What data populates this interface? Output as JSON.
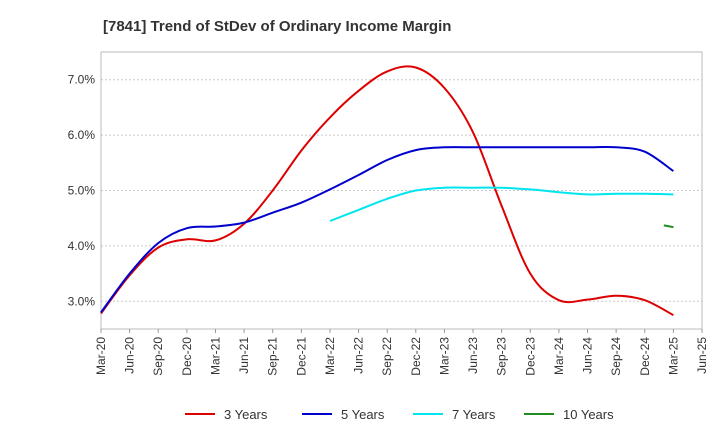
{
  "chart_data": {
    "type": "line",
    "title": "[7841]  Trend of StDev of Ordinary Income Margin",
    "xlabel": "",
    "ylabel": "",
    "x_tick_labels": [
      "Mar-20",
      "Jun-20",
      "Sep-20",
      "Dec-20",
      "Mar-21",
      "Jun-21",
      "Sep-21",
      "Dec-21",
      "Mar-22",
      "Jun-22",
      "Sep-22",
      "Dec-22",
      "Mar-23",
      "Jun-23",
      "Sep-23",
      "Dec-23",
      "Mar-24",
      "Jun-24",
      "Sep-24",
      "Dec-24",
      "Mar-25",
      "Jun-25"
    ],
    "y_ticks": [
      3.0,
      4.0,
      5.0,
      6.0,
      7.0
    ],
    "y_tick_labels": [
      "3.0%",
      "4.0%",
      "5.0%",
      "6.0%",
      "7.0%"
    ],
    "ylim": [
      2.5,
      7.5
    ],
    "grid": true,
    "legend_position": "bottom",
    "series": [
      {
        "name": "3 Years",
        "color": "#dd0000",
        "points": [
          [
            "Mar-20",
            2.78
          ],
          [
            "Jun-20",
            3.47
          ],
          [
            "Sep-20",
            3.97
          ],
          [
            "Dec-20",
            4.12
          ],
          [
            "Mar-21",
            4.1
          ],
          [
            "Jun-21",
            4.4
          ],
          [
            "Sep-21",
            5.0
          ],
          [
            "Dec-21",
            5.72
          ],
          [
            "Mar-22",
            6.32
          ],
          [
            "Jun-22",
            6.8
          ],
          [
            "Sep-22",
            7.15
          ],
          [
            "Dec-22",
            7.22
          ],
          [
            "Mar-23",
            6.85
          ],
          [
            "Jun-23",
            6.05
          ],
          [
            "Sep-23",
            4.72
          ],
          [
            "Dec-23",
            3.5
          ],
          [
            "Mar-24",
            3.02
          ],
          [
            "Jun-24",
            3.03
          ],
          [
            "Sep-24",
            3.1
          ],
          [
            "Dec-24",
            3.02
          ],
          [
            "Mar-25",
            2.75
          ]
        ]
      },
      {
        "name": "5 Years",
        "color": "#0000cc",
        "points": [
          [
            "Mar-20",
            2.8
          ],
          [
            "Jun-20",
            3.5
          ],
          [
            "Sep-20",
            4.05
          ],
          [
            "Dec-20",
            4.32
          ],
          [
            "Mar-21",
            4.35
          ],
          [
            "Jun-21",
            4.42
          ],
          [
            "Sep-21",
            4.6
          ],
          [
            "Dec-21",
            4.78
          ],
          [
            "Mar-22",
            5.02
          ],
          [
            "Jun-22",
            5.28
          ],
          [
            "Sep-22",
            5.55
          ],
          [
            "Dec-22",
            5.73
          ],
          [
            "Mar-23",
            5.78
          ],
          [
            "Jun-23",
            5.78
          ],
          [
            "Sep-23",
            5.78
          ],
          [
            "Dec-23",
            5.78
          ],
          [
            "Mar-24",
            5.78
          ],
          [
            "Jun-24",
            5.78
          ],
          [
            "Sep-24",
            5.78
          ],
          [
            "Dec-24",
            5.7
          ],
          [
            "Mar-25",
            5.35
          ]
        ]
      },
      {
        "name": "7 Years",
        "color": "#00e5ee",
        "points": [
          [
            "Mar-22",
            4.45
          ],
          [
            "Jun-22",
            4.65
          ],
          [
            "Sep-22",
            4.85
          ],
          [
            "Dec-22",
            5.0
          ],
          [
            "Mar-23",
            5.05
          ],
          [
            "Jun-23",
            5.05
          ],
          [
            "Sep-23",
            5.05
          ],
          [
            "Dec-23",
            5.02
          ],
          [
            "Mar-24",
            4.97
          ],
          [
            "Jun-24",
            4.93
          ],
          [
            "Sep-24",
            4.94
          ],
          [
            "Dec-24",
            4.94
          ],
          [
            "Mar-25",
            4.93
          ]
        ]
      },
      {
        "name": "10 Years",
        "color": "#228b22",
        "points": [
          [
            "Feb-25",
            4.37
          ],
          [
            "Mar-25",
            4.34
          ]
        ]
      }
    ]
  }
}
